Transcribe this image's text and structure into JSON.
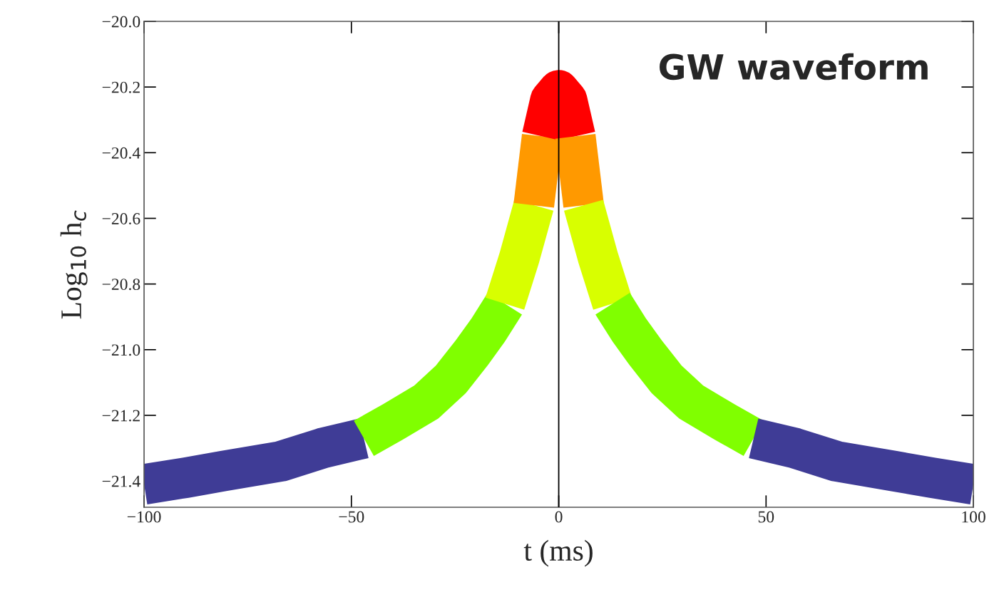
{
  "chart_data": {
    "type": "line",
    "xlabel": "t (ms)",
    "ylabel": "Log$_{10}$ h$_{c}$",
    "annotations": [
      "GW waveform"
    ],
    "xlim": [
      -100,
      100
    ],
    "ylim": [
      -21.48,
      -20.0
    ],
    "xticks": [
      {
        "value": -100,
        "label": "−100"
      },
      {
        "value": -50,
        "label": "−50"
      },
      0,
      50,
      100
    ],
    "yticks": [
      {
        "value": -21.4,
        "label": "−21.4"
      },
      {
        "value": -21.2,
        "label": "−21.2"
      },
      {
        "value": -21.0,
        "label": "−21.0"
      },
      {
        "value": -20.8,
        "label": "−20.8"
      },
      {
        "value": -20.6,
        "label": "−20.6"
      },
      {
        "value": -20.4,
        "label": "−20.4"
      },
      {
        "value": -20.2,
        "label": "−20.2"
      },
      {
        "value": -20.0,
        "label": "−20.0"
      }
    ],
    "grid": false,
    "legend": false,
    "marker": "none",
    "line_style": "solid",
    "ref_lines": [
      {
        "axis": "x",
        "value": 0,
        "color": "#000000"
      }
    ],
    "series": [
      {
        "color": "#3f3c96",
        "x": [
          -100,
          -90,
          -81,
          -67,
          -57,
          -47
        ],
        "values": [
          -21.41,
          -21.39,
          -21.37,
          -21.34,
          -21.3,
          -21.27
        ]
      },
      {
        "color": "#80ff00",
        "x": [
          -47,
          -40,
          -32,
          -26,
          -21,
          -17,
          -13
        ],
        "values": [
          -21.27,
          -21.22,
          -21.16,
          -21.09,
          -21.01,
          -20.94,
          -20.86
        ]
      },
      {
        "color": "#d8ff00",
        "x": [
          -13,
          -9.5,
          -6
        ],
        "values": [
          -20.86,
          -20.72,
          -20.56
        ]
      },
      {
        "color": "#ff9900",
        "x": [
          -6,
          -4
        ],
        "values": [
          -20.56,
          -20.35
        ]
      },
      {
        "color": "#ff0000",
        "x": [
          -4,
          -2,
          0,
          2,
          4
        ],
        "values": [
          -20.35,
          -20.24,
          -20.21,
          -20.24,
          -20.35
        ]
      },
      {
        "color": "#ff9900",
        "x": [
          4,
          6
        ],
        "values": [
          -20.35,
          -20.56
        ]
      },
      {
        "color": "#d8ff00",
        "x": [
          6,
          9.5,
          13
        ],
        "values": [
          -20.56,
          -20.72,
          -20.86
        ]
      },
      {
        "color": "#80ff00",
        "x": [
          13,
          17,
          21,
          26,
          32,
          40,
          47
        ],
        "values": [
          -20.86,
          -20.94,
          -21.01,
          -21.09,
          -21.16,
          -21.22,
          -21.27
        ]
      },
      {
        "color": "#3f3c96",
        "x": [
          47,
          57,
          67,
          81,
          90,
          100
        ],
        "values": [
          -21.27,
          -21.3,
          -21.34,
          -21.37,
          -21.39,
          -21.41
        ]
      }
    ]
  }
}
